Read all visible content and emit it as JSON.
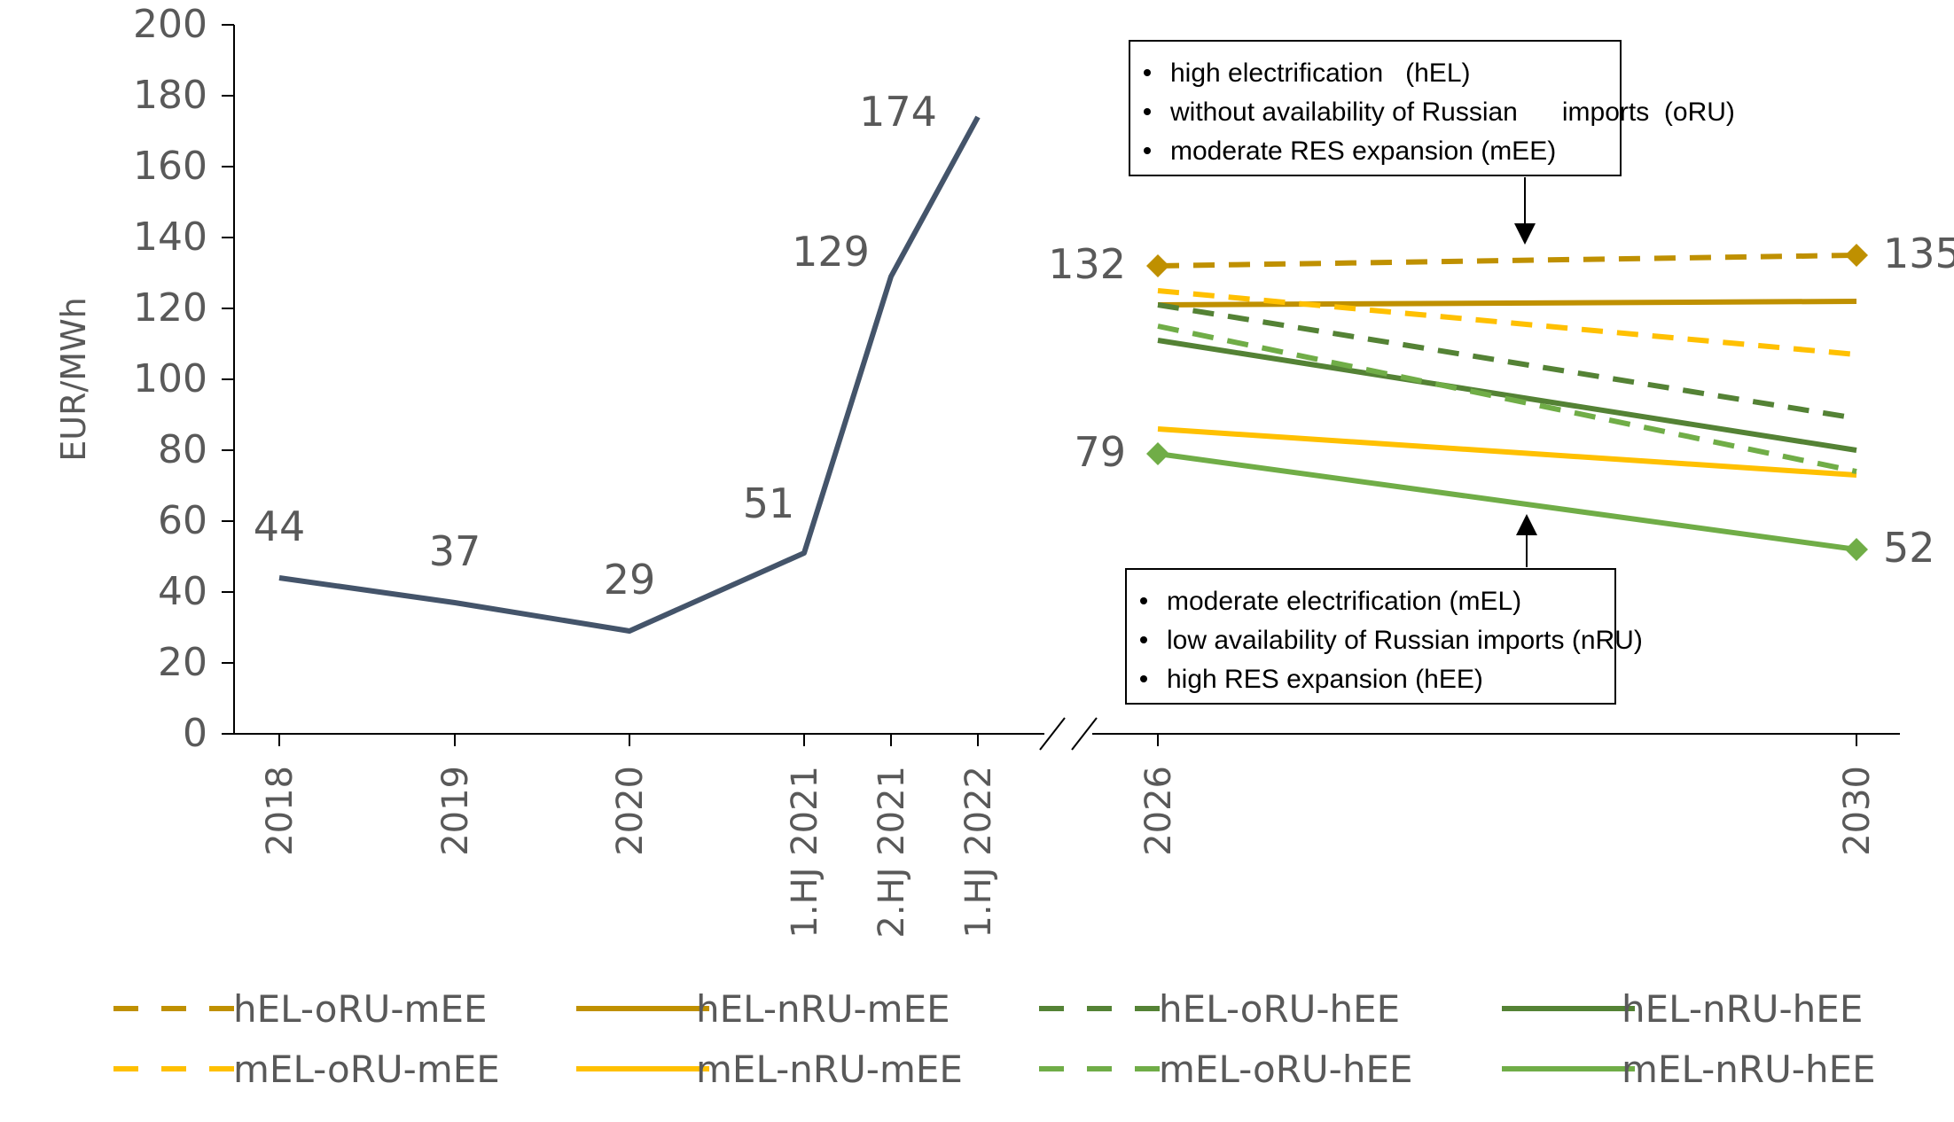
{
  "chart_data": {
    "type": "line",
    "ylabel": "EUR/MWh",
    "ylim": [
      0,
      200
    ],
    "yticks": [
      "0",
      "20",
      "40",
      "60",
      "80",
      "100",
      "120",
      "140",
      "160",
      "180",
      "200"
    ],
    "historical": {
      "color": "#44546A",
      "x": [
        "2018",
        "2019",
        "2020",
        "1.HJ 2021",
        "2.HJ 2021",
        "1.HJ 2022"
      ],
      "values": [
        44,
        37,
        29,
        51,
        129,
        174
      ],
      "labels": [
        "44",
        "37",
        "29",
        "51",
        "129",
        "174"
      ]
    },
    "scenario_x": [
      "2026",
      "2030"
    ],
    "series": [
      {
        "name": "hEL-oRU-mEE",
        "color": "#BF9000",
        "dash": true,
        "values": [
          132,
          135
        ],
        "markers": true,
        "labels": [
          "132",
          "135"
        ]
      },
      {
        "name": "hEL-nRU-mEE",
        "color": "#BF9000",
        "dash": false,
        "values": [
          121,
          122
        ]
      },
      {
        "name": "hEL-oRU-hEE",
        "color": "#548235",
        "dash": true,
        "values": [
          121,
          89
        ]
      },
      {
        "name": "hEL-nRU-hEE",
        "color": "#548235",
        "dash": false,
        "values": [
          111,
          80
        ]
      },
      {
        "name": "mEL-oRU-mEE",
        "color": "#FFC000",
        "dash": true,
        "values": [
          125,
          107
        ]
      },
      {
        "name": "mEL-nRU-mEE",
        "color": "#FFC000",
        "dash": false,
        "values": [
          86,
          73
        ]
      },
      {
        "name": "mEL-oRU-hEE",
        "color": "#70AD47",
        "dash": true,
        "values": [
          115,
          74
        ]
      },
      {
        "name": "mEL-nRU-hEE",
        "color": "#70AD47",
        "dash": false,
        "values": [
          79,
          52
        ],
        "markers": true,
        "labels": [
          "79",
          "52"
        ]
      }
    ],
    "annotations": [
      {
        "lines": [
          "high electrification   (hEL)",
          "without availability of Russian      imports  (oRU)",
          "moderate RES expansion (mEE)"
        ]
      },
      {
        "lines": [
          "moderate electrification (mEL)",
          "low availability of Russian imports (nRU)",
          "high RES expansion (hEE)"
        ]
      }
    ],
    "grid": false,
    "legend_position": "bottom"
  }
}
